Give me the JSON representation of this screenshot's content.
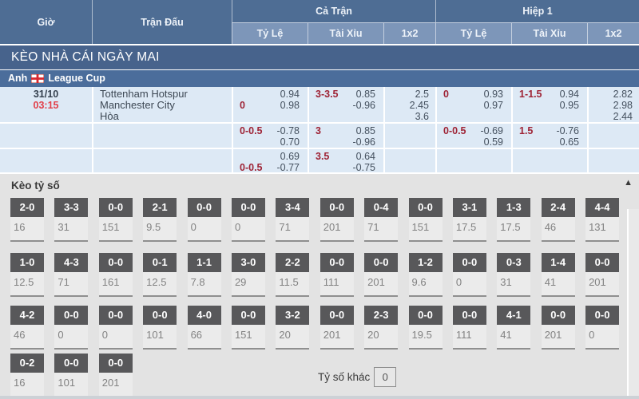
{
  "header": {
    "col_time": "Giờ",
    "col_match": "Trận Đấu",
    "group_full": "Cả Trận",
    "group_h1": "Hiệp 1",
    "sub_odds": "Tỷ Lệ",
    "sub_ou": "Tài Xỉu",
    "sub_1x2": "1x2"
  },
  "section_title": "KÈO NHÀ CÁI NGÀY MAI",
  "league": {
    "country": "Anh",
    "name": "League Cup",
    "flag_icon": "england-flag"
  },
  "match": {
    "date": "31/10",
    "time": "03:15",
    "home": "Tottenham Hotspur",
    "away": "Manchester City",
    "draw": "Hòa"
  },
  "odds_rows": [
    {
      "ft_hdp": [
        [
          "",
          "0.94"
        ],
        [
          "0",
          "0.98"
        ]
      ],
      "ft_ou": [
        [
          "3-3.5",
          "0.85"
        ],
        [
          "",
          "-0.96"
        ]
      ],
      "ft_1x2": [
        "2.5",
        "2.45",
        "3.6"
      ],
      "h1_hdp": [
        [
          "0",
          "0.93"
        ],
        [
          "",
          "0.97"
        ]
      ],
      "h1_ou": [
        [
          "1-1.5",
          "0.94"
        ],
        [
          "",
          "0.95"
        ]
      ],
      "h1_1x2": [
        "2.82",
        "2.98",
        "2.44"
      ]
    },
    {
      "ft_hdp": [
        [
          "0-0.5",
          "-0.78"
        ],
        [
          "",
          "0.70"
        ]
      ],
      "ft_ou": [
        [
          "3",
          "0.85"
        ],
        [
          "",
          "-0.96"
        ]
      ],
      "ft_1x2": [],
      "h1_hdp": [
        [
          "0-0.5",
          "-0.69"
        ],
        [
          "",
          "0.59"
        ]
      ],
      "h1_ou": [
        [
          "1.5",
          "-0.76"
        ],
        [
          "",
          "0.65"
        ]
      ],
      "h1_1x2": []
    },
    {
      "ft_hdp": [
        [
          "",
          "0.69"
        ],
        [
          "0-0.5",
          "-0.77"
        ]
      ],
      "ft_ou": [
        [
          "3.5",
          "0.64"
        ],
        [
          "",
          "-0.75"
        ]
      ],
      "ft_1x2": [],
      "h1_hdp": [],
      "h1_ou": [],
      "h1_1x2": []
    }
  ],
  "score_section": {
    "title": "Kèo tỷ số",
    "collapse_icon": "▲",
    "other_label": "Tỷ số khác",
    "other_value": "0",
    "rows": [
      [
        [
          "2-0",
          "16"
        ],
        [
          "3-3",
          "31"
        ],
        [
          "0-0",
          "151"
        ],
        [
          "2-1",
          "9.5"
        ],
        [
          "0-0",
          "0"
        ],
        [
          "0-0",
          "0"
        ],
        [
          "3-4",
          "71"
        ],
        [
          "0-0",
          "201"
        ],
        [
          "0-4",
          "71"
        ],
        [
          "0-0",
          "151"
        ],
        [
          "3-1",
          "17.5"
        ],
        [
          "1-3",
          "17.5"
        ],
        [
          "2-4",
          "46"
        ],
        [
          "4-4",
          "131"
        ]
      ],
      [
        [
          "1-0",
          "12.5"
        ],
        [
          "4-3",
          "71"
        ],
        [
          "0-0",
          "161"
        ],
        [
          "0-1",
          "12.5"
        ],
        [
          "1-1",
          "7.8"
        ],
        [
          "3-0",
          "29"
        ],
        [
          "2-2",
          "11.5"
        ],
        [
          "0-0",
          "111"
        ],
        [
          "0-0",
          "201"
        ],
        [
          "1-2",
          "9.6"
        ],
        [
          "0-0",
          "0"
        ],
        [
          "0-3",
          "31"
        ],
        [
          "1-4",
          "41"
        ],
        [
          "0-0",
          "201"
        ]
      ],
      [
        [
          "4-2",
          "46"
        ],
        [
          "0-0",
          "0"
        ],
        [
          "0-0",
          "0"
        ],
        [
          "0-0",
          "101"
        ],
        [
          "4-0",
          "66"
        ],
        [
          "0-0",
          "151"
        ],
        [
          "3-2",
          "20"
        ],
        [
          "0-0",
          "201"
        ],
        [
          "2-3",
          "20"
        ],
        [
          "0-0",
          "19.5"
        ],
        [
          "0-0",
          "111"
        ],
        [
          "4-1",
          "41"
        ],
        [
          "0-0",
          "201"
        ],
        [
          "0-0",
          "0"
        ]
      ],
      [
        [
          "0-2",
          "16"
        ],
        [
          "0-0",
          "101"
        ],
        [
          "0-0",
          "201"
        ]
      ]
    ]
  },
  "colors": {
    "header_blue": "#4e6d94",
    "subheader_blue": "#7d96b9",
    "title_bar_blue": "#47638c",
    "league_bar_blue": "#4b6d9b",
    "row_light_blue": "#dde9f5",
    "handicap_red": "#9e2335",
    "time_red": "#e2404a",
    "score_box_gray": "#58585a",
    "section_bg_gray": "#e3e3e3"
  }
}
